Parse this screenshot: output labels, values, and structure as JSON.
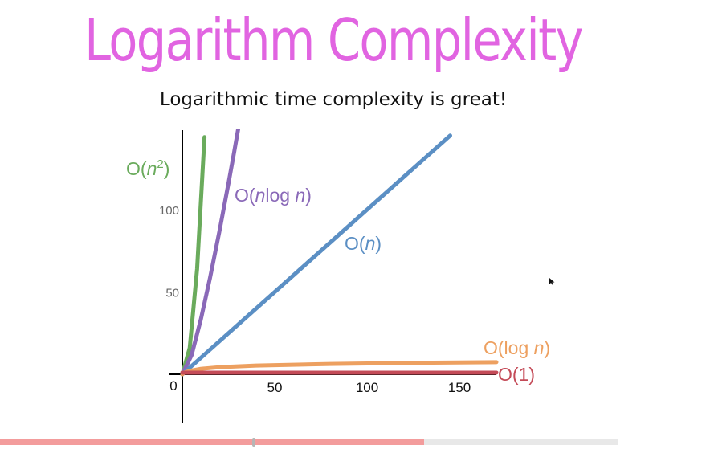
{
  "slide": {
    "title": "Logarithm Complexity",
    "subtitle": "Logarithmic time complexity is great!"
  },
  "player": {
    "progress": 0.686,
    "handle_position": 0.41,
    "fill_color": "#f39c9c",
    "track_color": "#e8e8e8"
  },
  "chart_data": {
    "type": "line",
    "title": "",
    "xlabel": "",
    "ylabel": "",
    "xlim": [
      0,
      170
    ],
    "ylim": [
      -15,
      135
    ],
    "grid": false,
    "origin_label": "0",
    "x_ticks": [
      50,
      100,
      150
    ],
    "x_tick_labels": [
      "50",
      "100",
      "150"
    ],
    "y_ticks": [
      50,
      100
    ],
    "y_tick_labels": [
      "50",
      "100"
    ],
    "series": [
      {
        "name": "O(n2)",
        "label_main": "O(",
        "label_var": "n",
        "label_sup": "2",
        "label_end": ")",
        "color": "#6aab5c",
        "x": [
          0,
          4,
          8,
          12
        ],
        "y": [
          0,
          16,
          64,
          144
        ]
      },
      {
        "name": "O(nlog n)",
        "label_main": "O(",
        "label_var": "n",
        "label_mid": "log ",
        "label_var2": "n",
        "label_end": ")",
        "color": "#8a69b8",
        "x": [
          0,
          5,
          10,
          15,
          20,
          25,
          28,
          30.5
        ],
        "y": [
          0,
          11.6,
          33.2,
          58.6,
          86.4,
          116.1,
          134.6,
          150.6
        ]
      },
      {
        "name": "O(n)",
        "label_main": "O(",
        "label_var": "n",
        "label_end": ")",
        "color": "#5b8fc4",
        "x": [
          0,
          145
        ],
        "y": [
          0,
          145
        ]
      },
      {
        "name": "O(log n)",
        "label_main": "O(log ",
        "label_var": "n",
        "label_end": ")",
        "color": "#eda060",
        "x": [
          0,
          1,
          5,
          10,
          20,
          40,
          80,
          120,
          170
        ],
        "y": [
          0,
          1,
          2.3,
          3.3,
          4.3,
          5.3,
          6.3,
          6.9,
          7.4
        ]
      },
      {
        "name": "O(1)",
        "label_main": "O(1)",
        "color": "#c44b58",
        "x": [
          0,
          170
        ],
        "y": [
          1,
          1
        ]
      }
    ]
  }
}
